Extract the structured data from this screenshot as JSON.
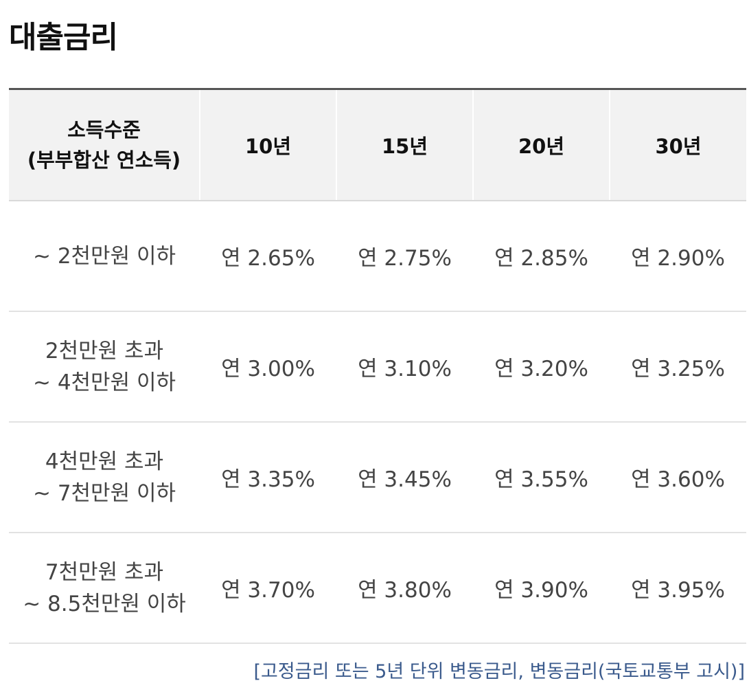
{
  "title": "대출금리",
  "table": {
    "header": {
      "income_label": [
        "소득수준",
        "(부부합산 연소득)"
      ],
      "terms": [
        "10년",
        "15년",
        "20년",
        "30년"
      ]
    },
    "rows": [
      {
        "income": [
          "~ 2천만원 이하"
        ],
        "rates": [
          "연 2.65%",
          "연 2.75%",
          "연 2.85%",
          "연 2.90%"
        ]
      },
      {
        "income": [
          "2천만원 초과",
          "~ 4천만원 이하"
        ],
        "rates": [
          "연 3.00%",
          "연 3.10%",
          "연 3.20%",
          "연 3.25%"
        ]
      },
      {
        "income": [
          "4천만원 초과",
          "~ 7천만원 이하"
        ],
        "rates": [
          "연 3.35%",
          "연 3.45%",
          "연 3.55%",
          "연 3.60%"
        ]
      },
      {
        "income": [
          "7천만원 초과",
          "~ 8.5천만원 이하"
        ],
        "rates": [
          "연 3.70%",
          "연 3.80%",
          "연 3.90%",
          "연 3.95%"
        ]
      }
    ]
  },
  "footnote": "[고정금리 또는 5년 단위 변동금리, 변동금리(국토교통부 고시)]"
}
